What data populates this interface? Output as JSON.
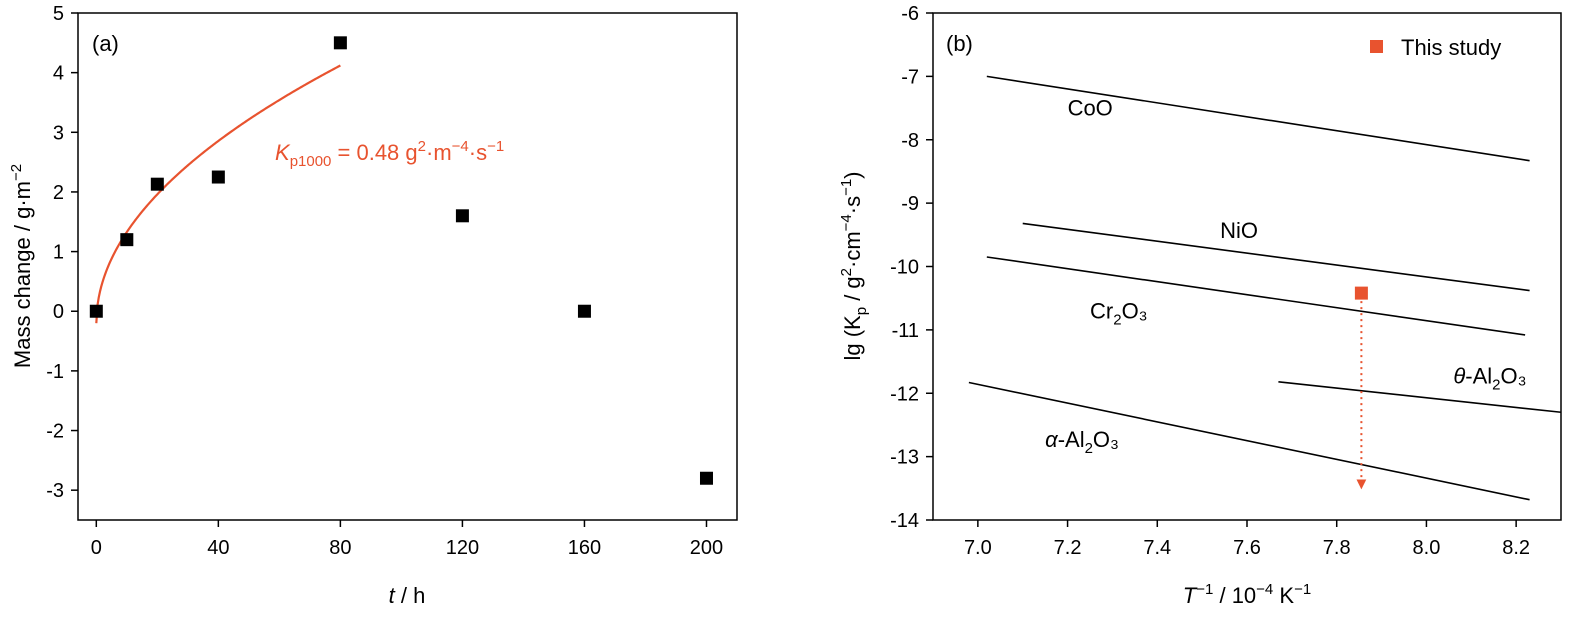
{
  "colors": {
    "accent": "#e8532f",
    "ink": "#000000"
  },
  "chart_data": [
    {
      "type": "scatter",
      "panel_label": "(a)",
      "xlabel_italic": "t",
      "xlabel_rest": " / h",
      "ylabel": "Mass change / g·m",
      "ylabel_sup": "−2",
      "xlim": [
        -6,
        210
      ],
      "ylim": [
        -3.5,
        5
      ],
      "xticks": [
        0,
        40,
        80,
        120,
        160,
        200
      ],
      "xtick_labels": [
        "0",
        "40",
        "80",
        "120",
        "160",
        "200"
      ],
      "yticks": [
        -3,
        -2,
        -1,
        0,
        1,
        2,
        3,
        4,
        5
      ],
      "ytick_labels": [
        "-3",
        "-2",
        "-1",
        "0",
        "1",
        "2",
        "3",
        "4",
        "5"
      ],
      "series": [
        {
          "x": [
            0,
            10,
            20,
            40,
            80,
            120,
            160,
            200
          ],
          "y": [
            0,
            1.2,
            2.13,
            2.25,
            4.5,
            1.6,
            0,
            -2.8
          ]
        }
      ],
      "fit_curve": {
        "form": "parabolic",
        "x_range": [
          0,
          80
        ],
        "y_at_80": 4.12,
        "offset": -0.2
      },
      "annotation": {
        "k": "K",
        "sub": "p1000",
        "eq": " = 0.48 g",
        "sup1": "2",
        "mid": "·m",
        "sup2": "−4",
        "mid2": "·s",
        "sup3": "−1"
      }
    },
    {
      "type": "line",
      "panel_label": "(b)",
      "xlabel": "T",
      "xlabel_sup": "−1",
      "xlabel_rest": " / 10",
      "xlabel_sup2": "−4",
      "xlabel_rest2": " K",
      "xlabel_sup3": "−1",
      "ylabel_pre": "lg (K",
      "ylabel_sub": "p",
      "ylabel_mid": " / g",
      "ylabel_sup1": "2",
      "ylabel_mid2": "·cm",
      "ylabel_sup2": "−4",
      "ylabel_mid3": "·s",
      "ylabel_sup3": "−1",
      "ylabel_post": ")",
      "xlim": [
        6.9,
        8.3
      ],
      "ylim": [
        -14,
        -6
      ],
      "xticks": [
        7.0,
        7.2,
        7.4,
        7.6,
        7.8,
        8.0,
        8.2
      ],
      "xtick_labels": [
        "7.0",
        "7.2",
        "7.4",
        "7.6",
        "7.8",
        "8.0",
        "8.2"
      ],
      "yticks": [
        -14,
        -13,
        -12,
        -11,
        -10,
        -9,
        -8,
        -7,
        -6
      ],
      "ytick_labels": [
        "-14",
        "-13",
        "-12",
        "-11",
        "-10",
        "-9",
        "-8",
        "-7",
        "-6"
      ],
      "series": [
        {
          "label_base": "CoO",
          "label_prefix": "",
          "label_sub": "",
          "label_tail": "",
          "x": [
            7.02,
            8.23
          ],
          "y": [
            -7.0,
            -8.33
          ],
          "label_x": 7.2,
          "label_y": -7.62
        },
        {
          "label_base": "NiO",
          "label_prefix": "",
          "label_sub": "",
          "label_tail": "",
          "x": [
            7.1,
            8.23
          ],
          "y": [
            -9.32,
            -10.38
          ],
          "label_x": 7.54,
          "label_y": -9.55
        },
        {
          "label_base": "Cr",
          "label_prefix": "",
          "label_sub": "2",
          "label_tail": "O₃",
          "x": [
            7.02,
            8.22
          ],
          "y": [
            -9.85,
            -11.08
          ],
          "label_x": 7.25,
          "label_y": -10.82
        },
        {
          "label_base": "-Al",
          "label_prefix": "θ",
          "label_sub": "2",
          "label_tail": "O₃",
          "x": [
            7.67,
            8.3
          ],
          "y": [
            -11.82,
            -12.3
          ],
          "label_x": 8.06,
          "label_y": -11.85
        },
        {
          "label_base": "-Al",
          "label_prefix": "α",
          "label_sub": "2",
          "label_tail": "O₃",
          "x": [
            6.98,
            8.23
          ],
          "y": [
            -11.83,
            -13.68
          ],
          "label_x": 7.15,
          "label_y": -12.85
        }
      ],
      "point": {
        "x": 7.855,
        "y": -10.42,
        "arrow_to_y": -13.5
      },
      "legend": {
        "label": "This study",
        "placement": "top-right"
      }
    }
  ]
}
